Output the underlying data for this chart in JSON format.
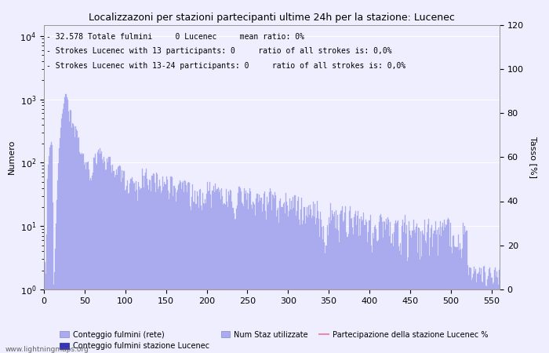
{
  "title": "Localizzazoni per stazioni partecipanti ultime 24h per la stazione: Lucenec",
  "ylabel_left": "Numero",
  "ylabel_right": "Tasso [%]",
  "annotation_lines": [
    "32.578 Totale fulmini     0 Lucenec     mean ratio: 0%",
    "Strokes Lucenec with 13 participants: 0     ratio of all strokes is: 0,0%",
    "Strokes Lucenec with 13-24 participants: 0     ratio of all strokes is: 0,0%"
  ],
  "xlim": [
    0,
    560
  ],
  "ylim_right": [
    0,
    120
  ],
  "bar_color": "#aaaaee",
  "bar_color_lucenec": "#3333bb",
  "line_color": "#ee88aa",
  "watermark": "www.lightningmaps.org",
  "legend": [
    {
      "label": "Conteggio fulmini (rete)",
      "color": "#aaaaee"
    },
    {
      "label": "Conteggio fulmini stazione Lucenec",
      "color": "#3333bb"
    },
    {
      "label": "Num Staz utilizzate",
      "color": "#aaaaee"
    },
    {
      "label": "Partecipazione della stazione Lucenec %",
      "color": "#ee88aa"
    }
  ],
  "xticks": [
    0,
    50,
    100,
    150,
    200,
    250,
    300,
    350,
    400,
    450,
    500,
    550
  ],
  "yticks_right": [
    0,
    20,
    40,
    60,
    80,
    100,
    120
  ],
  "background_color": "#eeeeff",
  "title_fontsize": 9,
  "axis_fontsize": 8,
  "annotation_fontsize": 7
}
